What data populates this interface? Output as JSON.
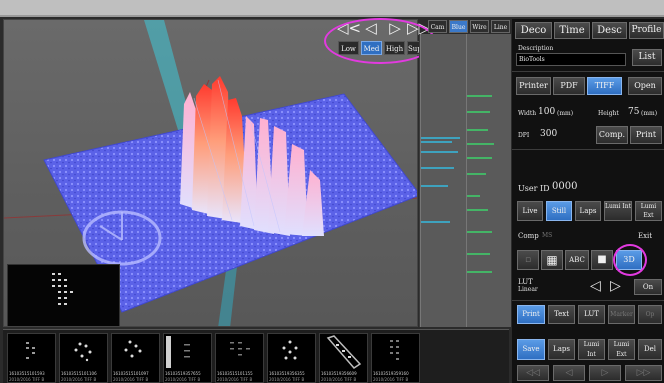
{
  "quality": {
    "nav_arrows": [
      "◁<",
      "◁",
      "▷",
      "▷▷"
    ],
    "levels": [
      {
        "label": "Low",
        "active": false
      },
      {
        "label": "Med",
        "active": true
      },
      {
        "label": "High",
        "active": false
      },
      {
        "label": "Super",
        "active": false
      }
    ]
  },
  "view_toolbar": [
    {
      "label": "Cam",
      "active": false
    },
    {
      "label": "Blue",
      "active": true
    },
    {
      "label": "Wire",
      "active": false
    },
    {
      "label": "Line",
      "active": false
    }
  ],
  "panel": {
    "tabs": [
      "Deco",
      "Time",
      "Desc",
      "Profile"
    ],
    "description_label": "Description",
    "description_value": "BioTools",
    "list_button": "List",
    "export_buttons": [
      "Printer",
      "PDF",
      "TIFF",
      "Open"
    ],
    "export_active": "TIFF",
    "width_label": "Width",
    "width_value": "100",
    "width_unit": "(mm)",
    "height_label": "Height",
    "height_value": "75",
    "height_unit": "(mm)",
    "dpi_label": "DPI",
    "dpi_value": "300",
    "comp_button": "Comp.",
    "print_button": "Print",
    "user_id_label": "User ID",
    "user_id_value": "0000",
    "capture_buttons": [
      "Live",
      "Still",
      "Laps",
      "Lumi Int",
      "Lumi Ext"
    ],
    "capture_active": "Still",
    "comp_label": "Comp",
    "ms_label": "MS",
    "exit_button": "Exit",
    "view_buttons": {
      "abc": "ABC",
      "mode_3d": "3D"
    },
    "lut_label": "LUT",
    "lut_value": "Linear",
    "lut_on": "On",
    "bottom_tabs": [
      "Print",
      "Text",
      "LUT",
      "Marker",
      "Op"
    ],
    "bottom_active": "Print",
    "save_buttons": [
      "Save",
      "Laps",
      "Lumi Int",
      "Lumi Ext",
      "Del"
    ],
    "save_active": "Save",
    "nav_buttons": [
      "◁◁",
      "◁",
      "▷",
      "▷▷"
    ]
  },
  "thumbnails": [
    {
      "id": "16103515101593",
      "meta": "2010/2016 TIFF B"
    },
    {
      "id": "16103515101106",
      "meta": "2010/2016 TIFF B"
    },
    {
      "id": "16103515101097",
      "meta": "2010/2016 TIFF B"
    },
    {
      "id": "16103519357655",
      "meta": "2010/2016 TIFF B"
    },
    {
      "id": "16103515101155",
      "meta": "2010/2016 TIFF B"
    },
    {
      "id": "16103519356355",
      "meta": "2010/2016 TIFF B"
    },
    {
      "id": "16103519356609",
      "meta": "2010/2016 TIFF B"
    },
    {
      "id": "16103519359160",
      "meta": "2010/2016 TIFF B"
    }
  ]
}
